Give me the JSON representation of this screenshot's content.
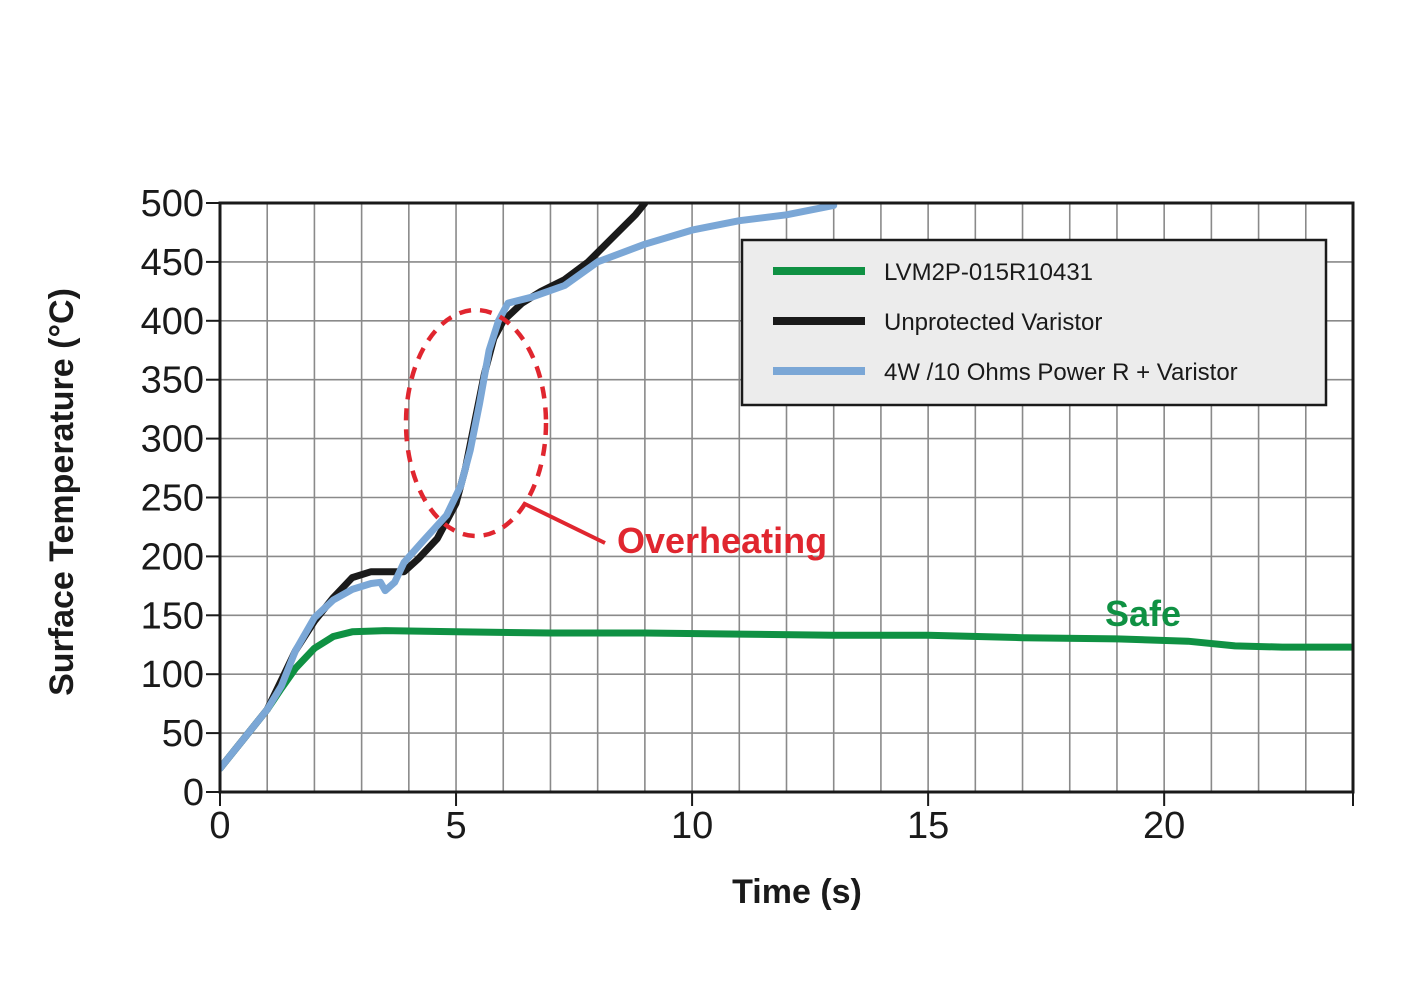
{
  "chart_data": {
    "type": "line",
    "xlabel": "Time (s)",
    "ylabel": "Surface Temperature (°C)",
    "xlim": [
      0,
      24
    ],
    "ylim": [
      0,
      500
    ],
    "x_ticks": [
      0,
      5,
      10,
      15,
      20
    ],
    "y_ticks": [
      0,
      50,
      100,
      150,
      200,
      250,
      300,
      350,
      400,
      450,
      500
    ],
    "grid": true,
    "legend_position": "top-right",
    "series": [
      {
        "name": "LVM2P-015R10431",
        "color": "#0f9143",
        "points": [
          [
            0,
            20
          ],
          [
            0.5,
            45
          ],
          [
            1.0,
            70
          ],
          [
            1.3,
            88
          ],
          [
            1.6,
            105
          ],
          [
            2.0,
            122
          ],
          [
            2.4,
            132
          ],
          [
            2.8,
            136
          ],
          [
            3.5,
            137
          ],
          [
            5,
            136
          ],
          [
            7,
            135
          ],
          [
            9,
            135
          ],
          [
            11,
            134
          ],
          [
            13,
            133
          ],
          [
            15,
            133
          ],
          [
            17,
            131
          ],
          [
            19,
            130
          ],
          [
            20.5,
            128
          ],
          [
            21.5,
            124
          ],
          [
            22.5,
            123
          ],
          [
            24,
            123
          ]
        ]
      },
      {
        "name": "Unprotected Varistor",
        "color": "#1a1a1a",
        "points": [
          [
            0,
            20
          ],
          [
            0.5,
            45
          ],
          [
            1.0,
            70
          ],
          [
            1.3,
            95
          ],
          [
            1.6,
            120
          ],
          [
            2.0,
            145
          ],
          [
            2.4,
            165
          ],
          [
            2.8,
            182
          ],
          [
            3.2,
            187
          ],
          [
            3.5,
            187
          ],
          [
            3.9,
            187
          ],
          [
            4.2,
            198
          ],
          [
            4.6,
            215
          ],
          [
            5.0,
            245
          ],
          [
            5.2,
            275
          ],
          [
            5.4,
            315
          ],
          [
            5.6,
            355
          ],
          [
            5.8,
            385
          ],
          [
            6.0,
            400
          ],
          [
            6.4,
            415
          ],
          [
            6.8,
            425
          ],
          [
            7.3,
            435
          ],
          [
            7.8,
            450
          ],
          [
            8.3,
            470
          ],
          [
            8.8,
            490
          ],
          [
            9.0,
            500
          ]
        ]
      },
      {
        "name": "4W /10 Ohms Power R + Varistor",
        "color": "#7ba7d6",
        "points": [
          [
            0,
            20
          ],
          [
            0.5,
            45
          ],
          [
            1.0,
            70
          ],
          [
            1.3,
            90
          ],
          [
            1.6,
            120
          ],
          [
            2.0,
            148
          ],
          [
            2.4,
            163
          ],
          [
            2.8,
            172
          ],
          [
            3.2,
            177
          ],
          [
            3.4,
            178
          ],
          [
            3.5,
            171
          ],
          [
            3.7,
            178
          ],
          [
            3.9,
            195
          ],
          [
            4.3,
            213
          ],
          [
            4.8,
            235
          ],
          [
            5.1,
            260
          ],
          [
            5.3,
            290
          ],
          [
            5.5,
            330
          ],
          [
            5.7,
            375
          ],
          [
            5.9,
            400
          ],
          [
            6.1,
            415
          ],
          [
            6.6,
            420
          ],
          [
            7.3,
            430
          ],
          [
            8.0,
            450
          ],
          [
            9.0,
            465
          ],
          [
            10.0,
            477
          ],
          [
            11.0,
            485
          ],
          [
            12.0,
            490
          ],
          [
            13.0,
            498
          ]
        ]
      }
    ],
    "annotations": [
      {
        "text": "Overheating",
        "color": "#e0262f"
      },
      {
        "text": "Safe",
        "color": "#0f9143"
      }
    ]
  }
}
